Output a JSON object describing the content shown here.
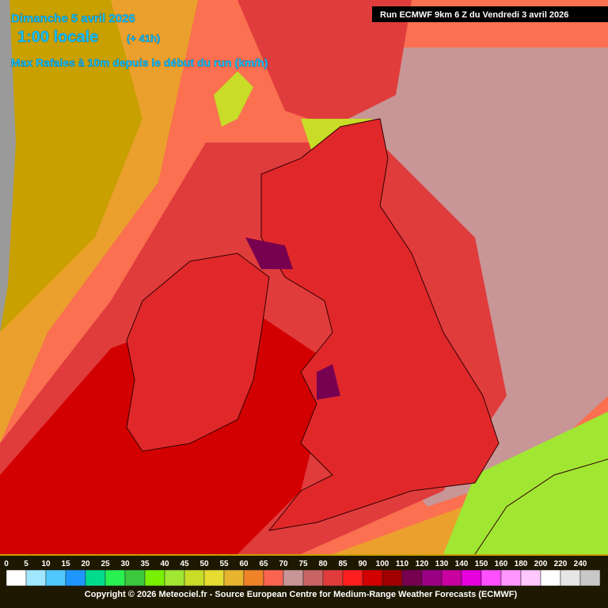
{
  "header": {
    "date": "Dimanche 5 avril 2026",
    "time": "1:00 locale",
    "offset": "(+ 41h)",
    "parameter": "Max Rafales à 10m depuis le début du run (km/h)",
    "run": "Run ECMWF 9km 6 Z du Vendredi 3 avril 2026"
  },
  "legend": {
    "labels": [
      0,
      5,
      10,
      15,
      20,
      25,
      30,
      35,
      40,
      45,
      50,
      55,
      60,
      65,
      70,
      75,
      80,
      85,
      90,
      100,
      110,
      120,
      130,
      140,
      150,
      160,
      180,
      200,
      220,
      240
    ],
    "colors": [
      "#ffffff",
      "#a0e6ff",
      "#50c8ff",
      "#1e96ff",
      "#00dc8c",
      "#28f050",
      "#3cc83c",
      "#78f000",
      "#a0e632",
      "#c8dc28",
      "#e6dc32",
      "#e6b42d",
      "#f08228",
      "#fa6450",
      "#c89696",
      "#c86464",
      "#e03c3c",
      "#ff1e1e",
      "#d20000",
      "#a00000",
      "#780050",
      "#9b0082",
      "#c800a0",
      "#e600dc",
      "#ff50ff",
      "#ff96ff",
      "#ffc8ff",
      "#ffffff",
      "#e6e6e6",
      "#c8c8c8"
    ]
  },
  "footer": {
    "copyright": "Copyright © 2026 Meteociel.fr - Source European Centre for Medium-Range Weather Forecasts (ECMWF)"
  }
}
